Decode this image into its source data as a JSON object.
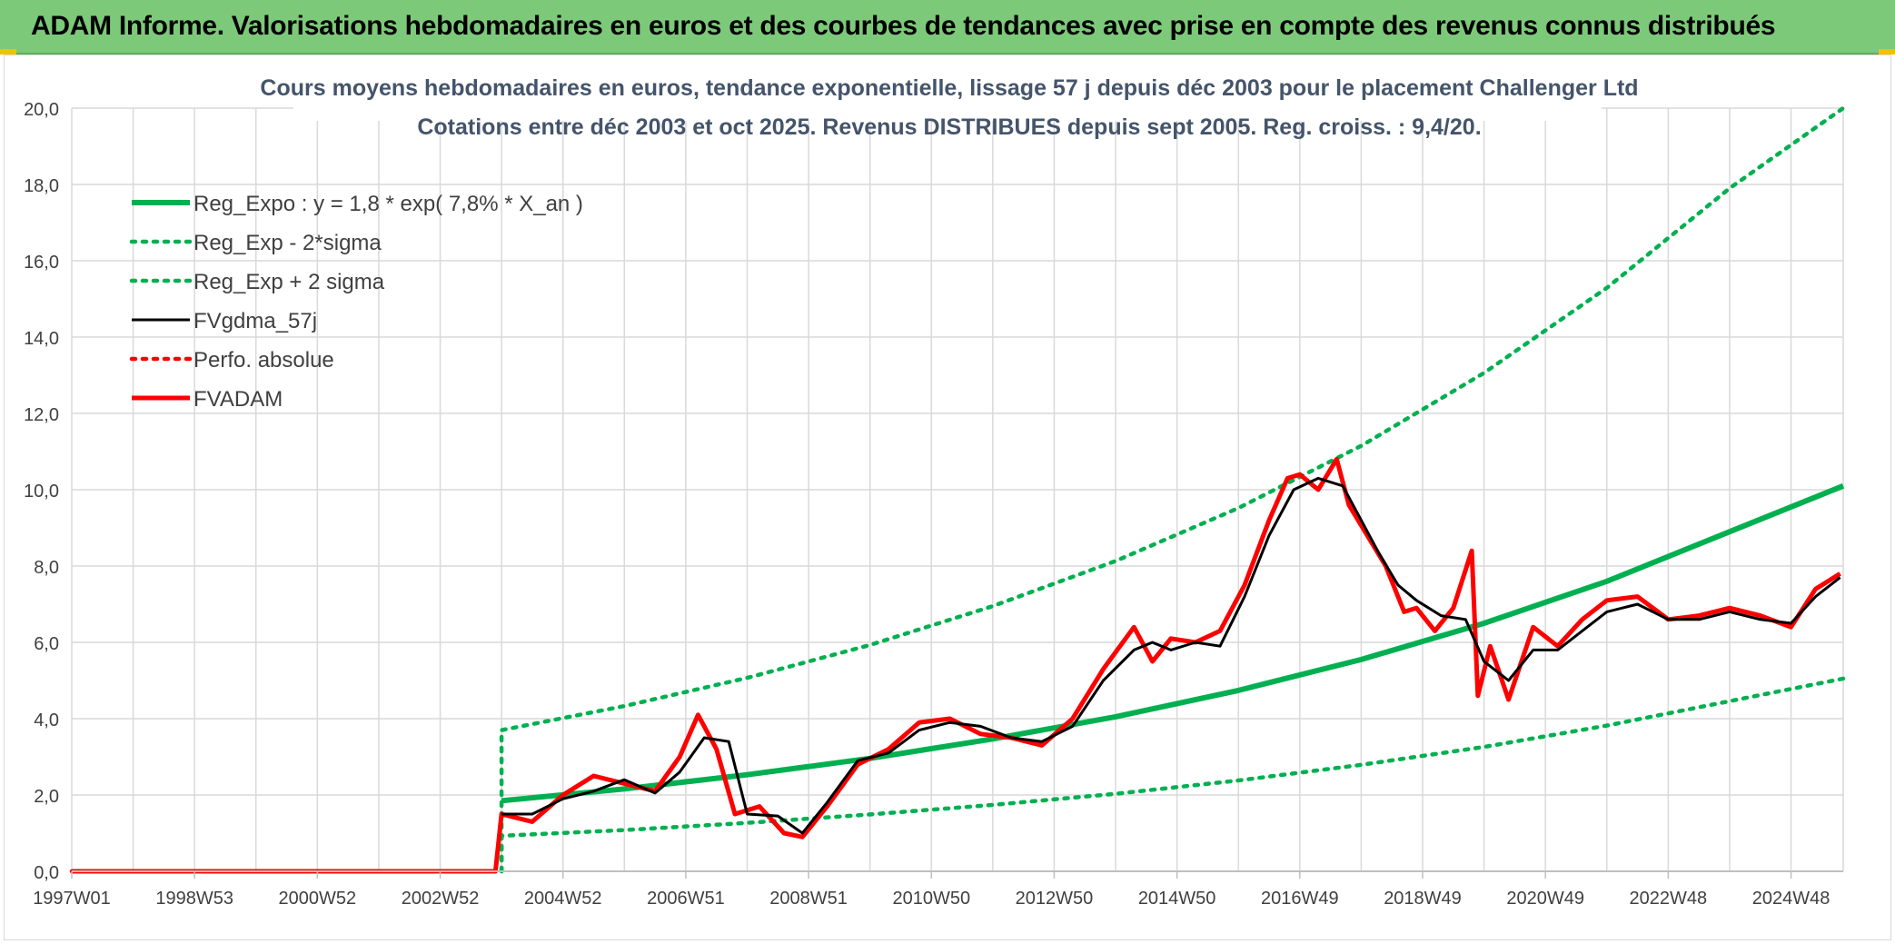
{
  "header": {
    "title": "ADAM Informe. Valorisations hebdomadaires en euros et des courbes de tendances avec prise en compte des revenus connus distribués"
  },
  "colors": {
    "header_bg": "#7dc97a",
    "reg_green": "#00b050",
    "black": "#000000",
    "red": "#ff0000",
    "grid": "#d9d9d9"
  },
  "chart_data": {
    "type": "line",
    "title_line1": "Cours moyens hebdomadaires en euros, tendance exponentielle, lissage 57 j depuis déc 2003 pour le placement Challenger Ltd",
    "title_line2": "Cotations entre déc 2003 et oct 2025. Revenus DISTRIBUES depuis sept 2005. Reg. croiss. : 9,4/20.",
    "ylim": [
      0,
      20
    ],
    "xlim": [
      1997.0,
      2025.85
    ],
    "y_ticks": [
      "0,0",
      "2,0",
      "4,0",
      "6,0",
      "8,0",
      "10,0",
      "12,0",
      "14,0",
      "16,0",
      "18,0",
      "20,0"
    ],
    "x_ticks": [
      {
        "label": "1997W01",
        "x": 1997.0
      },
      {
        "label": "1998W53",
        "x": 1999.0
      },
      {
        "label": "2000W52",
        "x": 2001.0
      },
      {
        "label": "2002W52",
        "x": 2003.0
      },
      {
        "label": "2004W52",
        "x": 2005.0
      },
      {
        "label": "2006W51",
        "x": 2007.0
      },
      {
        "label": "2008W51",
        "x": 2009.0
      },
      {
        "label": "2010W50",
        "x": 2011.0
      },
      {
        "label": "2012W50",
        "x": 2013.0
      },
      {
        "label": "2014W50",
        "x": 2015.0
      },
      {
        "label": "2016W49",
        "x": 2017.0
      },
      {
        "label": "2018W49",
        "x": 2019.0
      },
      {
        "label": "2020W49",
        "x": 2021.0
      },
      {
        "label": "2022W48",
        "x": 2023.0
      },
      {
        "label": "2024W48",
        "x": 2025.0
      }
    ],
    "series": [
      {
        "name": "Reg_Expo : y = 1,8 * exp( 7,8% *  X_an )",
        "style": "solid-thick",
        "color": "#00b050",
        "x": [
          2004.0,
          2006.0,
          2008.0,
          2010.0,
          2012.0,
          2014.0,
          2016.0,
          2018.0,
          2020.0,
          2022.0,
          2024.0,
          2025.85
        ],
        "values": [
          1.85,
          2.16,
          2.53,
          2.96,
          3.47,
          4.05,
          4.74,
          5.55,
          6.5,
          7.6,
          8.9,
          10.1
        ]
      },
      {
        "name": "Reg_Exp - 2*sigma",
        "style": "dotted",
        "color": "#00b050",
        "x": [
          2004.0,
          2006.0,
          2008.0,
          2010.0,
          2012.0,
          2014.0,
          2016.0,
          2018.0,
          2020.0,
          2022.0,
          2024.0,
          2025.85
        ],
        "values": [
          0.93,
          1.08,
          1.27,
          1.49,
          1.74,
          2.03,
          2.38,
          2.79,
          3.26,
          3.82,
          4.46,
          5.05
        ]
      },
      {
        "name": "Reg_Exp + 2 sigma",
        "style": "dotted",
        "color": "#00b050",
        "x": [
          2004.0,
          2006.0,
          2008.0,
          2010.0,
          2012.0,
          2014.0,
          2016.0,
          2018.0,
          2020.0,
          2022.0,
          2024.0,
          2025.85
        ],
        "values": [
          3.7,
          4.33,
          5.07,
          5.93,
          6.95,
          8.13,
          9.52,
          11.15,
          13.06,
          15.29,
          17.9,
          20.0
        ]
      },
      {
        "name": "FVgdma_57j",
        "style": "solid",
        "color": "#000000",
        "x": [
          2004.0,
          2004.5,
          2005.0,
          2005.5,
          2006.0,
          2006.5,
          2006.9,
          2007.3,
          2007.7,
          2008.0,
          2008.5,
          2008.9,
          2009.3,
          2009.8,
          2010.3,
          2010.8,
          2011.3,
          2011.8,
          2012.3,
          2012.8,
          2013.3,
          2013.8,
          2014.3,
          2014.6,
          2014.9,
          2015.3,
          2015.7,
          2016.1,
          2016.5,
          2016.9,
          2017.3,
          2017.7,
          2018.0,
          2018.3,
          2018.6,
          2018.9,
          2019.3,
          2019.7,
          2020.0,
          2020.4,
          2020.8,
          2021.2,
          2021.6,
          2022.0,
          2022.5,
          2023.0,
          2023.5,
          2024.0,
          2024.5,
          2025.0,
          2025.4,
          2025.8
        ],
        "values": [
          1.5,
          1.5,
          1.9,
          2.1,
          2.4,
          2.05,
          2.6,
          3.5,
          3.4,
          1.5,
          1.45,
          1.0,
          1.8,
          2.9,
          3.1,
          3.7,
          3.9,
          3.8,
          3.5,
          3.4,
          3.8,
          5.0,
          5.8,
          6.0,
          5.8,
          6.0,
          5.9,
          7.2,
          8.8,
          10.0,
          10.3,
          10.1,
          9.2,
          8.3,
          7.5,
          7.1,
          6.7,
          6.6,
          5.5,
          5.0,
          5.8,
          5.8,
          6.3,
          6.8,
          7.0,
          6.6,
          6.6,
          6.8,
          6.6,
          6.5,
          7.2,
          7.7
        ]
      },
      {
        "name": "Perfo. absolue",
        "style": "dotted",
        "color": "#ff0000",
        "x": [
          1997.0,
          2003.9,
          2004.0,
          2004.5,
          2005.0,
          2005.5,
          2006.0,
          2006.5,
          2006.9,
          2007.2,
          2007.5,
          2007.8,
          2008.2,
          2008.6,
          2008.9,
          2009.3,
          2009.8,
          2010.3,
          2010.8,
          2011.3,
          2011.8,
          2012.3,
          2012.8,
          2013.3,
          2013.8,
          2014.3,
          2014.6,
          2014.9,
          2015.3,
          2015.7,
          2016.1,
          2016.5,
          2016.8,
          2017.0,
          2017.3,
          2017.6,
          2017.8,
          2018.1,
          2018.4,
          2018.7,
          2018.9,
          2019.2,
          2019.5,
          2019.8,
          2019.9,
          2020.1,
          2020.4,
          2020.8,
          2021.2,
          2021.6,
          2022.0,
          2022.5,
          2023.0,
          2023.5,
          2024.0,
          2024.5,
          2025.0,
          2025.4,
          2025.8
        ],
        "values": [
          0,
          0,
          1.5,
          1.3,
          2.0,
          2.5,
          2.3,
          2.1,
          3.0,
          4.1,
          3.2,
          1.5,
          1.7,
          1.0,
          0.9,
          1.7,
          2.8,
          3.2,
          3.9,
          4.0,
          3.6,
          3.5,
          3.3,
          4.0,
          5.3,
          6.4,
          5.5,
          6.1,
          6.0,
          6.3,
          7.5,
          9.2,
          10.3,
          10.4,
          10.0,
          10.8,
          9.6,
          8.8,
          8.0,
          6.8,
          6.9,
          6.3,
          6.9,
          8.4,
          4.6,
          5.9,
          4.5,
          6.4,
          5.9,
          6.6,
          7.1,
          7.2,
          6.6,
          6.7,
          6.9,
          6.7,
          6.4,
          7.4,
          7.8
        ]
      },
      {
        "name": "FVADAM",
        "style": "solid-thick",
        "color": "#ff0000",
        "x": [
          1997.0,
          2003.9,
          2004.0,
          2004.5,
          2005.0,
          2005.5,
          2006.0,
          2006.5,
          2006.9,
          2007.2,
          2007.5,
          2007.8,
          2008.2,
          2008.6,
          2008.9,
          2009.3,
          2009.8,
          2010.3,
          2010.8,
          2011.3,
          2011.8,
          2012.3,
          2012.8,
          2013.3,
          2013.8,
          2014.3,
          2014.6,
          2014.9,
          2015.3,
          2015.7,
          2016.1,
          2016.5,
          2016.8,
          2017.0,
          2017.3,
          2017.6,
          2017.8,
          2018.1,
          2018.4,
          2018.7,
          2018.9,
          2019.2,
          2019.5,
          2019.8,
          2019.9,
          2020.1,
          2020.4,
          2020.8,
          2021.2,
          2021.6,
          2022.0,
          2022.5,
          2023.0,
          2023.5,
          2024.0,
          2024.5,
          2025.0,
          2025.4,
          2025.8
        ],
        "values": [
          0,
          0,
          1.5,
          1.3,
          2.0,
          2.5,
          2.3,
          2.1,
          3.0,
          4.1,
          3.2,
          1.5,
          1.7,
          1.0,
          0.9,
          1.7,
          2.8,
          3.2,
          3.9,
          4.0,
          3.6,
          3.5,
          3.3,
          4.0,
          5.3,
          6.4,
          5.5,
          6.1,
          6.0,
          6.3,
          7.5,
          9.2,
          10.3,
          10.4,
          10.0,
          10.8,
          9.6,
          8.8,
          8.0,
          6.8,
          6.9,
          6.3,
          6.9,
          8.4,
          4.6,
          5.9,
          4.5,
          6.4,
          5.9,
          6.6,
          7.1,
          7.2,
          6.6,
          6.7,
          6.9,
          6.7,
          6.4,
          7.4,
          7.8
        ]
      }
    ],
    "legend": {
      "placement": "top-left"
    },
    "grid": true
  }
}
